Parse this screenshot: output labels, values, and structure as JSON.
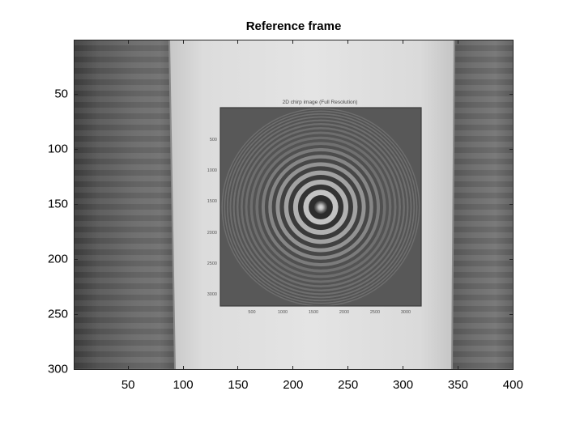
{
  "title": "Reference frame",
  "x_ticks": [
    "50",
    "100",
    "150",
    "200",
    "250",
    "300",
    "350",
    "400"
  ],
  "y_ticks": [
    "50",
    "100",
    "150",
    "200",
    "250",
    "300"
  ],
  "image": {
    "x_range": [
      0.5,
      400.5
    ],
    "y_range": [
      0.5,
      300.5
    ],
    "colormap": "gray",
    "photographed_chart": {
      "title": "2D chirp image (Full Resolution)",
      "x_ticks": [
        "500",
        "1000",
        "1500",
        "2000",
        "2500",
        "3000"
      ],
      "y_ticks": [
        "500",
        "1000",
        "1500",
        "2000",
        "2500",
        "3000"
      ]
    }
  },
  "colors": {
    "background": "#ffffff",
    "axis": "#262626",
    "text": "#000000"
  }
}
